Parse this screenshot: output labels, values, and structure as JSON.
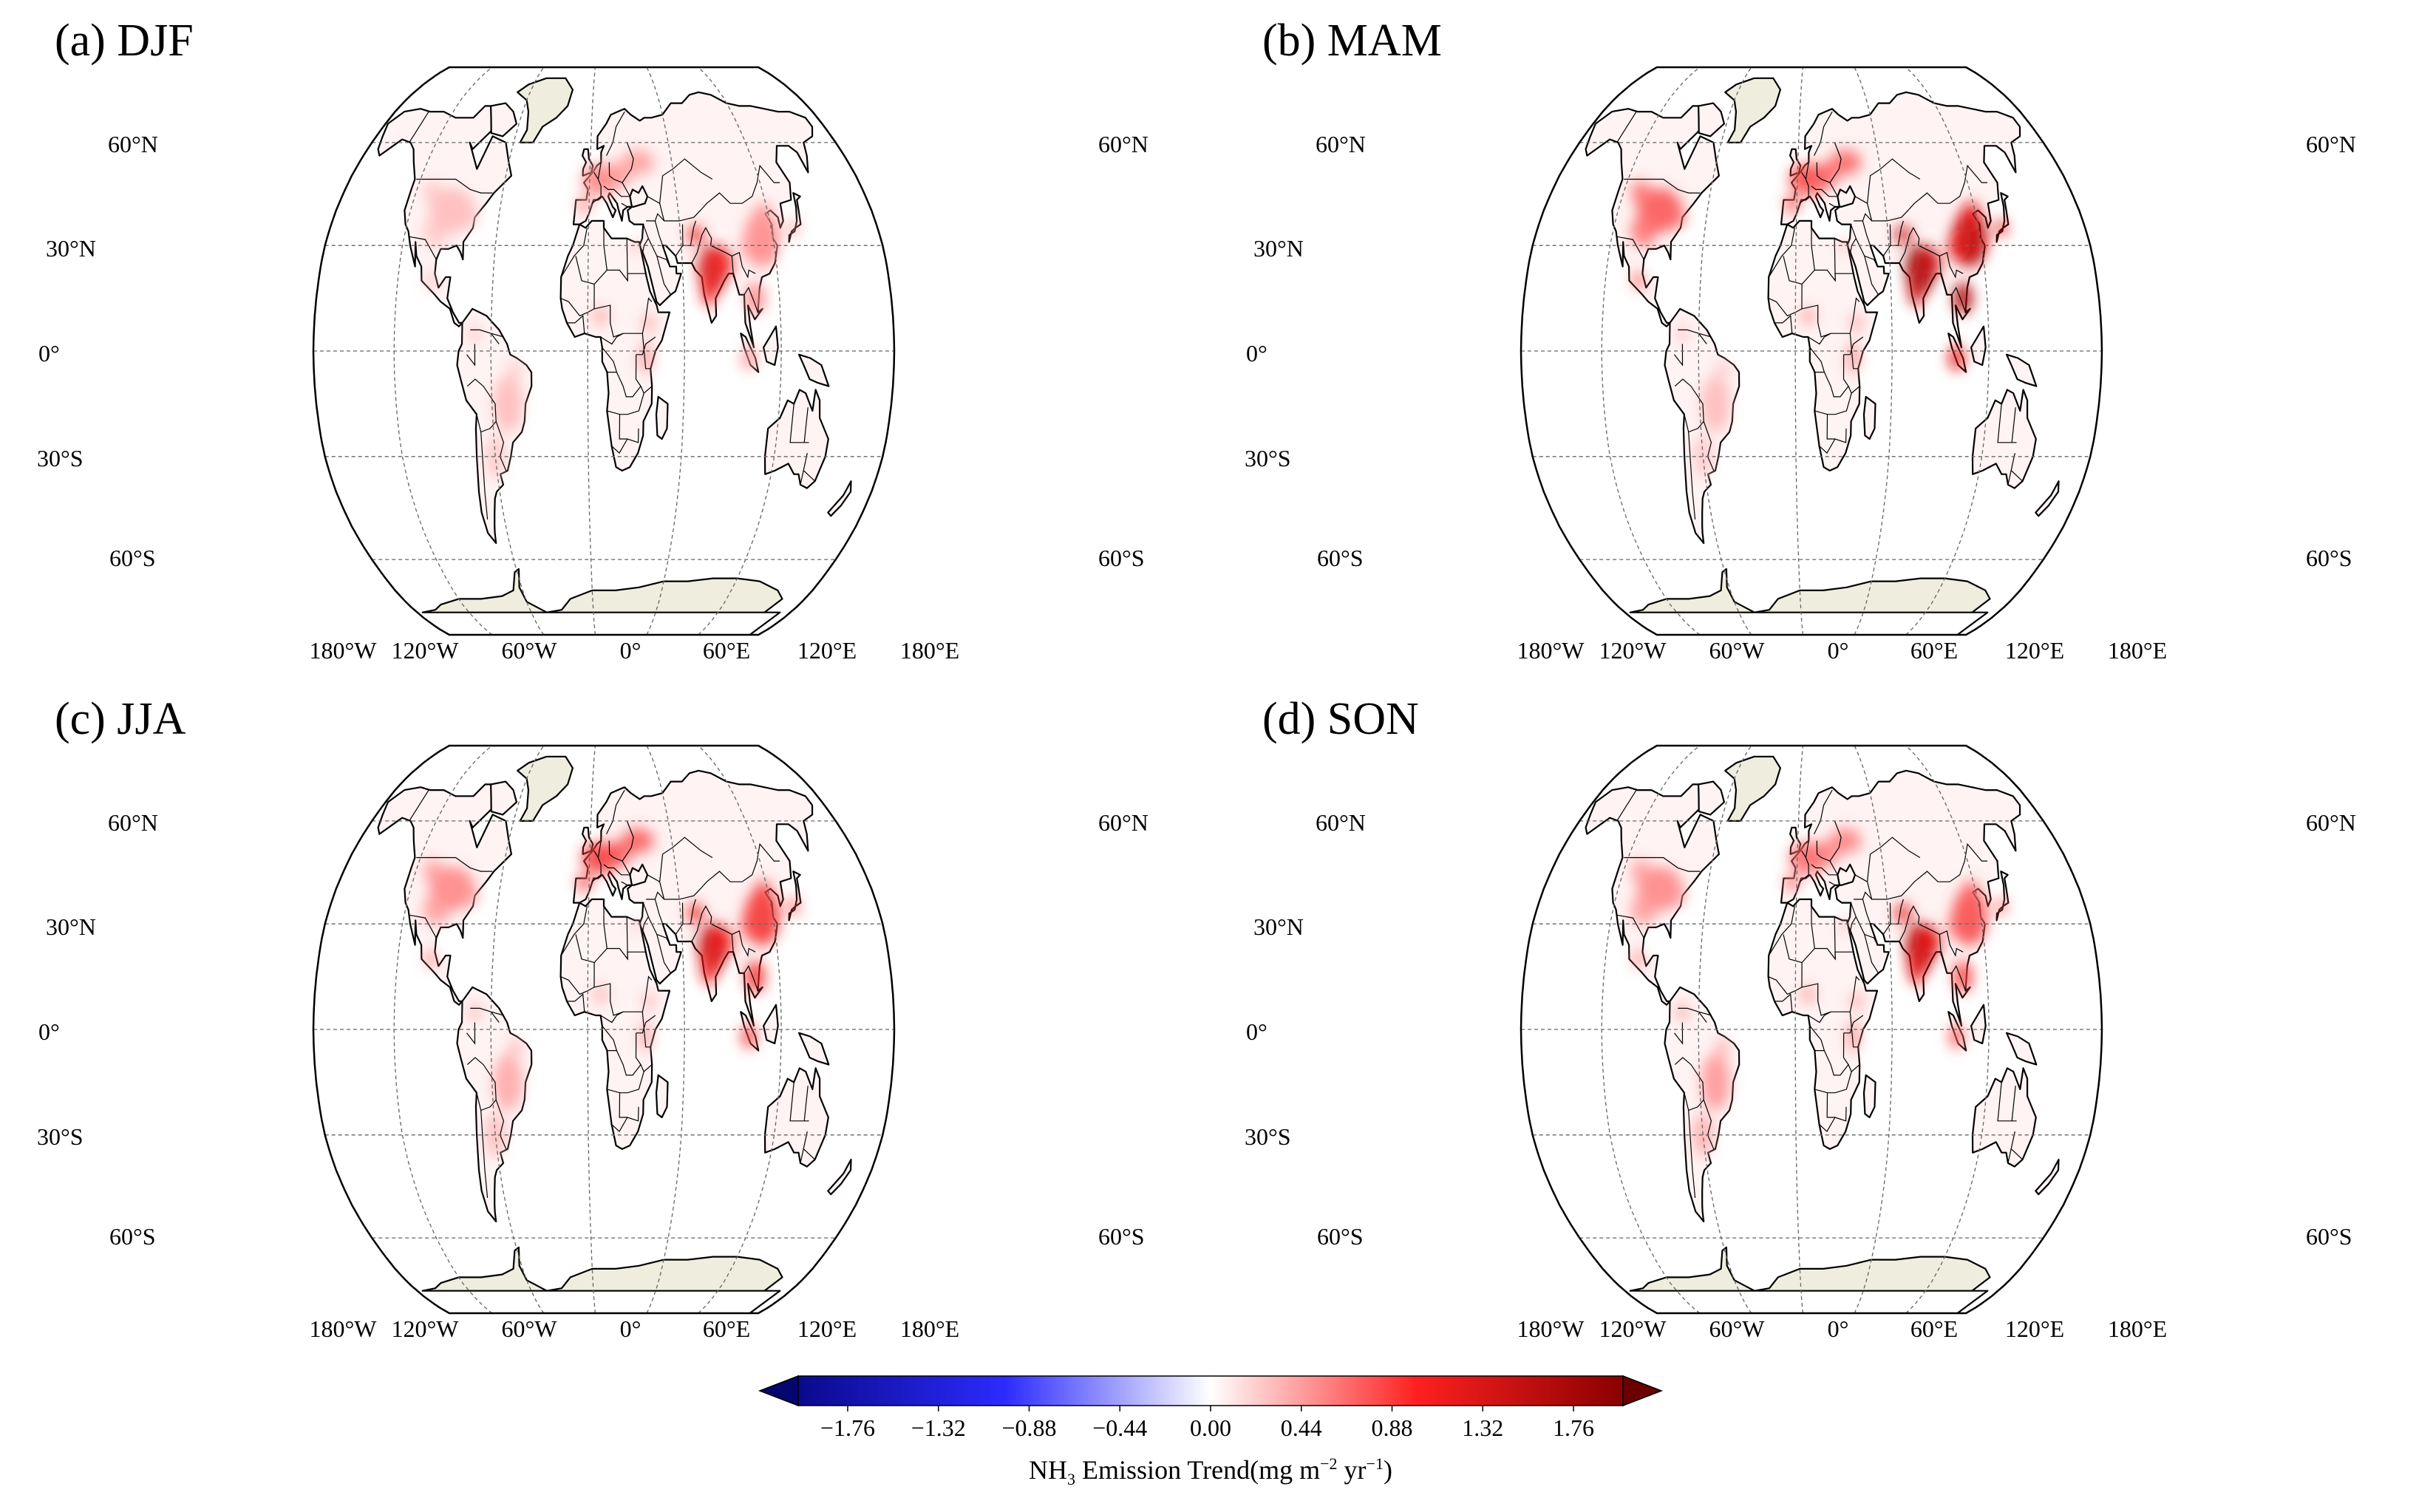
{
  "figure": {
    "colormap": {
      "low": "#0a0a8c",
      "mid_low": "#2b2bff",
      "mid": "#ffffff",
      "mid_high": "#ff3030",
      "high": "#8b0000"
    }
  },
  "chart_data": {
    "type": "map",
    "projection": "Robinson",
    "variable": "NH3 Emission Trend",
    "colorbar": {
      "label_prefix": "NH",
      "label_sub": "3",
      "label_main": " Emission Trend(mg m",
      "label_sup1": "−2",
      "label_mid": " yr",
      "label_sup2": "−1",
      "label_end": ")",
      "ticks": [
        "−1.76",
        "−1.32",
        "−0.88",
        "−0.44",
        "0.00",
        "0.44",
        "0.88",
        "1.32",
        "1.76"
      ],
      "tick_values": [
        -1.76,
        -1.32,
        -0.88,
        -0.44,
        0.0,
        0.44,
        0.88,
        1.32,
        1.76
      ],
      "vmin": -2.0,
      "vmax": 2.0,
      "extend": "both"
    },
    "lat_labels": [
      "60°N",
      "30°N",
      "0°",
      "30°S",
      "60°S"
    ],
    "lon_labels": [
      "180°W",
      "120°W",
      "60°W",
      "0°",
      "60°E",
      "120°E",
      "180°E"
    ],
    "panels": [
      {
        "title": "(a) DJF",
        "season": "DJF",
        "hotspots": [
          {
            "region": "India / Indo-Gangetic Plain",
            "value": 1.6
          },
          {
            "region": "Eastern China",
            "value": 0.7
          },
          {
            "region": "Europe",
            "value": 0.7
          },
          {
            "region": "United States",
            "value": 0.4
          },
          {
            "region": "East Africa",
            "value": 0.6
          },
          {
            "region": "South America",
            "value": 0.4
          }
        ]
      },
      {
        "title": "(b) MAM",
        "season": "MAM",
        "hotspots": [
          {
            "region": "India / Indo-Gangetic Plain",
            "value": 2.0
          },
          {
            "region": "Eastern China",
            "value": 1.8
          },
          {
            "region": "Europe",
            "value": 1.1
          },
          {
            "region": "United States",
            "value": 1.0
          },
          {
            "region": "East Africa",
            "value": 0.6
          },
          {
            "region": "South America",
            "value": 0.4
          }
        ]
      },
      {
        "title": "(c) JJA",
        "season": "JJA",
        "hotspots": [
          {
            "region": "India / Indo-Gangetic Plain",
            "value": 1.7
          },
          {
            "region": "Eastern China",
            "value": 1.3
          },
          {
            "region": "Europe",
            "value": 1.2
          },
          {
            "region": "United States",
            "value": 0.7
          },
          {
            "region": "East Africa",
            "value": 0.5
          },
          {
            "region": "South America",
            "value": 0.5
          }
        ]
      },
      {
        "title": "(d) SON",
        "season": "SON",
        "hotspots": [
          {
            "region": "India / Indo-Gangetic Plain",
            "value": 1.8
          },
          {
            "region": "Eastern China",
            "value": 1.1
          },
          {
            "region": "Europe",
            "value": 0.9
          },
          {
            "region": "United States",
            "value": 0.7
          },
          {
            "region": "East Africa",
            "value": 0.6
          },
          {
            "region": "South America",
            "value": 0.6
          }
        ]
      }
    ]
  }
}
